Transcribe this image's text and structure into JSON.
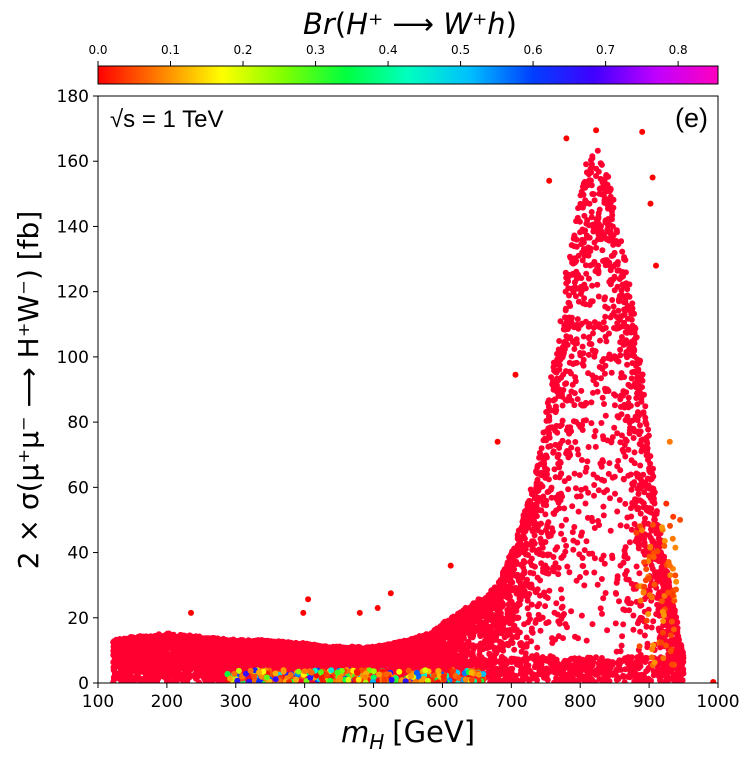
{
  "chart_data": {
    "type": "scatter",
    "title": "",
    "colorbar": {
      "label": "Br(H⁺ ⟶ W⁺h)",
      "label_base": "Br",
      "label_args": "H⁺ ⟶ W⁺h",
      "range": [
        0.0,
        0.855
      ],
      "ticks": [
        0.0,
        0.1,
        0.2,
        0.3,
        0.4,
        0.5,
        0.6,
        0.7,
        0.8
      ],
      "tick_labels": [
        "0.0",
        "0.1",
        "0.2",
        "0.3",
        "0.4",
        "0.5",
        "0.6",
        "0.7",
        "0.8"
      ],
      "colormap": "gist_rainbow",
      "colormap_stops": [
        "#ff0000",
        "#ff8000",
        "#ffff00",
        "#80ff00",
        "#00ff40",
        "#00ffbf",
        "#00bfff",
        "#0040ff",
        "#4000ff",
        "#bf00ff",
        "#ff00bf"
      ],
      "placement": "top"
    },
    "xlabel_var": "m",
    "xlabel_sub": "H",
    "xlabel_unit": "[GeV]",
    "ylabel": "2 × σ(μ⁺μ⁻ ⟶ H⁺W⁻) [fb]",
    "xlim": [
      100,
      1000
    ],
    "ylim": [
      0,
      180
    ],
    "xticks": [
      100,
      200,
      300,
      400,
      500,
      600,
      700,
      800,
      900,
      1000
    ],
    "xtick_labels": [
      "100",
      "200",
      "300",
      "400",
      "500",
      "600",
      "700",
      "800",
      "900",
      "1000"
    ],
    "yticks": [
      0,
      20,
      40,
      60,
      80,
      100,
      120,
      140,
      160,
      180
    ],
    "ytick_labels": [
      "0",
      "20",
      "40",
      "60",
      "80",
      "100",
      "120",
      "140",
      "160",
      "180"
    ],
    "grid": false,
    "annotations": [
      {
        "text": "√s = 1 TeV",
        "position": "top-left"
      },
      {
        "text": "(e)",
        "position": "top-right"
      }
    ],
    "envelope": {
      "description": "upper edge of the point cloud (x in GeV, y in fb)",
      "x": [
        125,
        150,
        200,
        250,
        300,
        350,
        400,
        450,
        500,
        550,
        580,
        600,
        620,
        650,
        680,
        700,
        720,
        740,
        760,
        780,
        800,
        820,
        840,
        860,
        880,
        900,
        910,
        920,
        930,
        940,
        950
      ],
      "y": [
        13,
        14,
        15,
        14,
        13,
        13,
        12,
        11,
        11,
        13,
        15,
        18,
        21,
        25,
        30,
        40,
        52,
        70,
        95,
        125,
        150,
        165,
        155,
        135,
        110,
        80,
        55,
        40,
        30,
        20,
        8
      ]
    },
    "series": [
      {
        "name": "dominant (Br ≈ 0)",
        "color": "#ff0030",
        "x_range": [
          122,
          950
        ],
        "y_range": [
          0,
          170
        ]
      },
      {
        "name": "low-σ tail (Br up to ~0.7)",
        "color": "mixed",
        "x_range": [
          285,
          660
        ],
        "y_range": [
          0,
          4
        ]
      }
    ],
    "outliers": [
      {
        "x": 235,
        "y": 21.5,
        "br": 0.0
      },
      {
        "x": 405,
        "y": 25.7,
        "br": 0.0
      },
      {
        "x": 398,
        "y": 21.5,
        "br": 0.0
      },
      {
        "x": 525,
        "y": 27.5,
        "br": 0.0
      },
      {
        "x": 506,
        "y": 23.0,
        "br": 0.0
      },
      {
        "x": 480,
        "y": 21.5,
        "br": 0.0
      },
      {
        "x": 612,
        "y": 36.0,
        "br": 0.0
      },
      {
        "x": 680,
        "y": 74.0,
        "br": 0.0
      },
      {
        "x": 706,
        "y": 94.5,
        "br": 0.0
      },
      {
        "x": 755,
        "y": 154.0,
        "br": 0.0
      },
      {
        "x": 780,
        "y": 167.0,
        "br": 0.0
      },
      {
        "x": 823,
        "y": 169.5,
        "br": 0.0
      },
      {
        "x": 890,
        "y": 169.0,
        "br": 0.0
      },
      {
        "x": 905,
        "y": 155.0,
        "br": 0.0
      },
      {
        "x": 902,
        "y": 147.0,
        "br": 0.0
      },
      {
        "x": 910,
        "y": 128.0,
        "br": 0.0
      },
      {
        "x": 930,
        "y": 74.0,
        "br": 0.08
      },
      {
        "x": 945,
        "y": 50.0,
        "br": 0.05
      },
      {
        "x": 938,
        "y": 33.0,
        "br": 0.05
      },
      {
        "x": 935,
        "y": 51.0,
        "br": 0.04
      },
      {
        "x": 925,
        "y": 55.0,
        "br": 0.03
      },
      {
        "x": 922,
        "y": 42.0,
        "br": 0.06
      },
      {
        "x": 930,
        "y": 36.0,
        "br": 0.07
      },
      {
        "x": 993,
        "y": 0.3,
        "br": 0.0
      }
    ]
  }
}
